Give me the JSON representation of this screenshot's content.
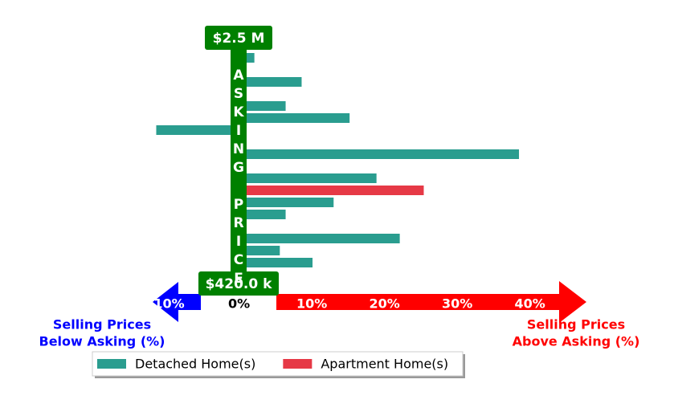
{
  "chart_data": {
    "type": "bar",
    "orientation": "horizontal",
    "top_label": "$2.5 M",
    "bottom_label": "$420.0 k",
    "axis_label": "ASKING PRICE",
    "below_label": [
      "Selling Prices",
      "Below Asking (%)"
    ],
    "above_label": [
      "Selling Prices",
      "Above Asking (%)"
    ],
    "series": [
      {
        "name": "Detached Home(s)",
        "color": "#2a9d8f",
        "values": [
          2.1,
          null,
          8.6,
          null,
          6.4,
          15.2,
          -11.4,
          null,
          38.5,
          null,
          18.9,
          null,
          13.0,
          6.4,
          null,
          22.1,
          5.6,
          10.1
        ]
      },
      {
        "name": "Apartment Home(s)",
        "color": "#e63946",
        "values": [
          null,
          null,
          null,
          null,
          null,
          null,
          null,
          null,
          null,
          null,
          null,
          25.4,
          null,
          null,
          null,
          null,
          null,
          null
        ]
      }
    ],
    "xlim": [
      -13,
      48
    ],
    "xticks": [
      {
        "value": -10,
        "label": "-10%"
      },
      {
        "value": 0,
        "label": "0%"
      },
      {
        "value": 10,
        "label": "10%"
      },
      {
        "value": 20,
        "label": "20%"
      },
      {
        "value": 30,
        "label": "30%"
      },
      {
        "value": 40,
        "label": "40%"
      }
    ],
    "legend": "bottom-left"
  }
}
